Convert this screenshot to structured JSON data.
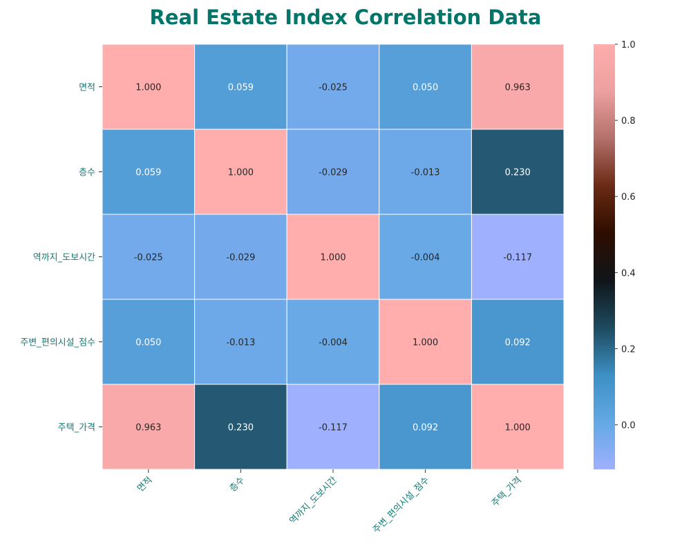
{
  "chart_data": {
    "type": "heatmap",
    "title": "Real Estate Index Correlation Data",
    "rows": [
      "면적",
      "층수",
      "역까지_도보시간",
      "주변_편의시설_점수",
      "주택_가격"
    ],
    "cols": [
      "면적",
      "층수",
      "역까지_도보시간",
      "주변_편의시설_점수",
      "주택_가격"
    ],
    "values": [
      [
        1.0,
        0.059,
        -0.025,
        0.05,
        0.963
      ],
      [
        0.059,
        1.0,
        -0.029,
        -0.013,
        0.23
      ],
      [
        -0.025,
        -0.029,
        1.0,
        -0.004,
        -0.117
      ],
      [
        0.05,
        -0.013,
        -0.004,
        1.0,
        0.092
      ],
      [
        0.963,
        0.23,
        -0.117,
        0.092,
        1.0
      ]
    ],
    "value_labels": [
      [
        "1.000",
        "0.059",
        "-0.025",
        "0.050",
        "0.963"
      ],
      [
        "0.059",
        "1.000",
        "-0.029",
        "-0.013",
        "0.230"
      ],
      [
        "-0.025",
        "-0.029",
        "1.000",
        "-0.004",
        "-0.117"
      ],
      [
        "0.050",
        "-0.013",
        "-0.004",
        "1.000",
        "0.092"
      ],
      [
        "0.963",
        "0.230",
        "-0.117",
        "0.092",
        "1.000"
      ]
    ],
    "colorbar": {
      "range": [
        -0.117,
        1.0
      ],
      "ticks": [
        0.0,
        0.2,
        0.4,
        0.6,
        0.8,
        1.0
      ],
      "tick_labels": [
        "0.0",
        "0.2",
        "0.4",
        "0.6",
        "0.8",
        "1.0"
      ],
      "placement": "right"
    },
    "colormap": [
      "#9fb0ff",
      "#63a8e4",
      "#3d8fc4",
      "#1e4a5e",
      "#10151a",
      "#2e0d00",
      "#6a2a14",
      "#b3706a",
      "#eca09f",
      "#ffadad"
    ]
  }
}
